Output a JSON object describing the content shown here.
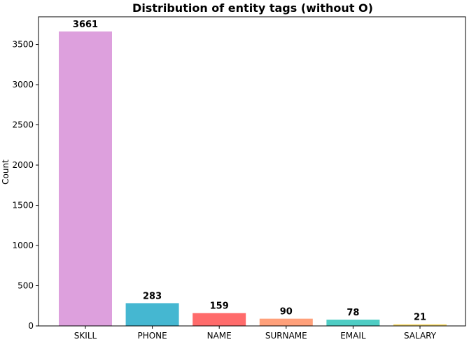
{
  "chart_data": {
    "type": "bar",
    "title": "Distribution of entity tags (without O)",
    "xlabel": "",
    "ylabel": "Count",
    "categories": [
      "SKILL",
      "PHONE",
      "NAME",
      "SURNAME",
      "EMAIL",
      "SALARY"
    ],
    "values": [
      3661,
      283,
      159,
      90,
      78,
      21
    ],
    "data_labels": [
      "3661",
      "283",
      "159",
      "90",
      "78",
      "21"
    ],
    "colors": [
      "#dda0dd",
      "#45b7d1",
      "#ff6b6b",
      "#ffa07a",
      "#4ecdc4",
      "#f7dc6f"
    ],
    "ylim": [
      0,
      3844
    ],
    "yticks": [
      0,
      500,
      1000,
      1500,
      2000,
      2500,
      3000,
      3500
    ],
    "ytick_labels": [
      "0",
      "500",
      "1000",
      "1500",
      "2000",
      "2500",
      "3000",
      "3500"
    ],
    "grid": false,
    "legend": "none"
  }
}
